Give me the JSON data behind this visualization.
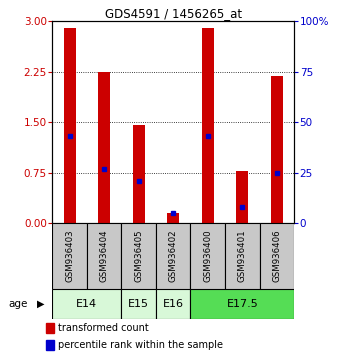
{
  "title": "GDS4591 / 1456265_at",
  "samples": [
    "GSM936403",
    "GSM936404",
    "GSM936405",
    "GSM936402",
    "GSM936400",
    "GSM936401",
    "GSM936406"
  ],
  "transformed_count": [
    2.9,
    2.25,
    1.45,
    0.15,
    2.9,
    0.78,
    2.18
  ],
  "percentile_rank_pct": [
    43,
    27,
    21,
    5,
    43,
    8,
    25
  ],
  "bar_color": "#cc0000",
  "dot_color": "#0000cc",
  "ylim_left": [
    0,
    3
  ],
  "ylim_right": [
    0,
    100
  ],
  "yticks_left": [
    0,
    0.75,
    1.5,
    2.25,
    3
  ],
  "yticks_right": [
    0,
    25,
    50,
    75,
    100
  ],
  "bg_sample": "#c8c8c8",
  "age_groups": [
    {
      "label": "E14",
      "start": 0,
      "end": 1,
      "color": "#d8f8d8"
    },
    {
      "label": "E15",
      "start": 2,
      "end": 2,
      "color": "#d8f8d8"
    },
    {
      "label": "E16",
      "start": 3,
      "end": 3,
      "color": "#d8f8d8"
    },
    {
      "label": "E17.5",
      "start": 4,
      "end": 6,
      "color": "#55dd55"
    }
  ]
}
